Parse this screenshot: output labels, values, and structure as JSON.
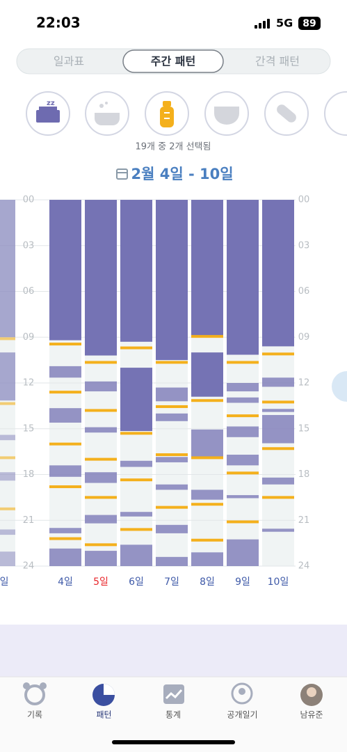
{
  "status_bar": {
    "time": "22:03",
    "network": "5G",
    "battery": "89"
  },
  "tabs": [
    "일과표",
    "주간 패턴",
    "간격 패턴"
  ],
  "active_tab": 1,
  "selection_note": "19개 중 2개 선택됨",
  "date_range": "2월 4일 - 10일",
  "chart": {
    "ylim": [
      0,
      24
    ],
    "yticks": [
      {
        "value": 0,
        "label": "00"
      },
      {
        "value": 3,
        "label": "03"
      },
      {
        "value": 6,
        "label": "06"
      },
      {
        "value": 9,
        "label": "09"
      },
      12,
      15,
      18,
      21,
      24
    ],
    "sleep_color": "#7573b4",
    "feed_color": "#f4b01c",
    "days": [
      {
        "label": "일",
        "color": "#3f5aa8",
        "sleep": [
          [
            0,
            9.0
          ],
          [
            10.0,
            13.15
          ],
          [
            15.4,
            15.75
          ],
          [
            17.85,
            18.4
          ],
          [
            21.6,
            21.95
          ],
          [
            23.05,
            24
          ]
        ],
        "feeds": [
          9.1,
          13.35,
          16.9,
          20.25
        ]
      },
      {
        "label": "4일",
        "color": "#3f5aa8",
        "sleep": [
          [
            0,
            9.2
          ],
          [
            10.9,
            11.65
          ],
          [
            13.65,
            14.6
          ],
          [
            17.4,
            18.15
          ],
          [
            21.5,
            21.85
          ],
          [
            22.85,
            24
          ]
        ],
        "feeds": [
          9.45,
          12.6,
          16.0,
          18.8,
          22.2
        ]
      },
      {
        "label": "5일",
        "color": "#e8262b",
        "sleep": [
          [
            0,
            10.2
          ],
          [
            11.9,
            12.55
          ],
          [
            14.9,
            15.25
          ],
          [
            17.85,
            18.55
          ],
          [
            20.65,
            21.2
          ],
          [
            23.0,
            24
          ]
        ],
        "feeds": [
          10.65,
          13.8,
          17.0,
          19.5,
          22.6
        ]
      },
      {
        "label": "6일",
        "color": "#3f5aa8",
        "sleep": [
          [
            0,
            9.3
          ],
          [
            11.0,
            15.15
          ],
          [
            17.1,
            17.5
          ],
          [
            20.45,
            20.75
          ],
          [
            22.6,
            24
          ]
        ],
        "feeds": [
          9.7,
          15.3,
          18.35,
          21.6
        ]
      },
      {
        "label": "7일",
        "color": "#3f5aa8",
        "sleep": [
          [
            0,
            10.5
          ],
          [
            12.3,
            13.2
          ],
          [
            14.0,
            14.5
          ],
          [
            16.85,
            17.2
          ],
          [
            18.65,
            19.0
          ],
          [
            21.3,
            21.85
          ],
          [
            23.4,
            24
          ]
        ],
        "feeds": [
          10.65,
          13.55,
          16.7,
          20.15
        ]
      },
      {
        "label": "8일",
        "color": "#3f5aa8",
        "sleep": [
          [
            0,
            8.95
          ],
          [
            10.0,
            12.9
          ],
          [
            15.05,
            16.85
          ],
          [
            19.0,
            19.65
          ],
          [
            23.1,
            24
          ]
        ],
        "feeds": [
          8.95,
          13.15,
          16.9,
          19.95,
          22.3
        ]
      },
      {
        "label": "9일",
        "color": "#3f5aa8",
        "sleep": [
          [
            0,
            10.15
          ],
          [
            12.0,
            12.55
          ],
          [
            12.95,
            13.3
          ],
          [
            14.85,
            15.55
          ],
          [
            16.7,
            17.4
          ],
          [
            19.35,
            19.55
          ],
          [
            22.25,
            24
          ]
        ],
        "feeds": [
          10.65,
          14.15,
          17.9,
          21.1
        ]
      },
      {
        "label": "10일",
        "color": "#3f5aa8",
        "sleep": [
          [
            0,
            9.6
          ],
          [
            11.65,
            12.25
          ],
          [
            13.7,
            13.9
          ],
          [
            14.1,
            15.95
          ],
          [
            18.2,
            18.65
          ],
          [
            21.55,
            21.75
          ]
        ],
        "feeds": [
          10.1,
          13.25,
          16.3,
          19.5
        ]
      }
    ]
  },
  "nav": [
    "기록",
    "패턴",
    "통계",
    "공개일기",
    "남유준"
  ],
  "active_nav": 1
}
